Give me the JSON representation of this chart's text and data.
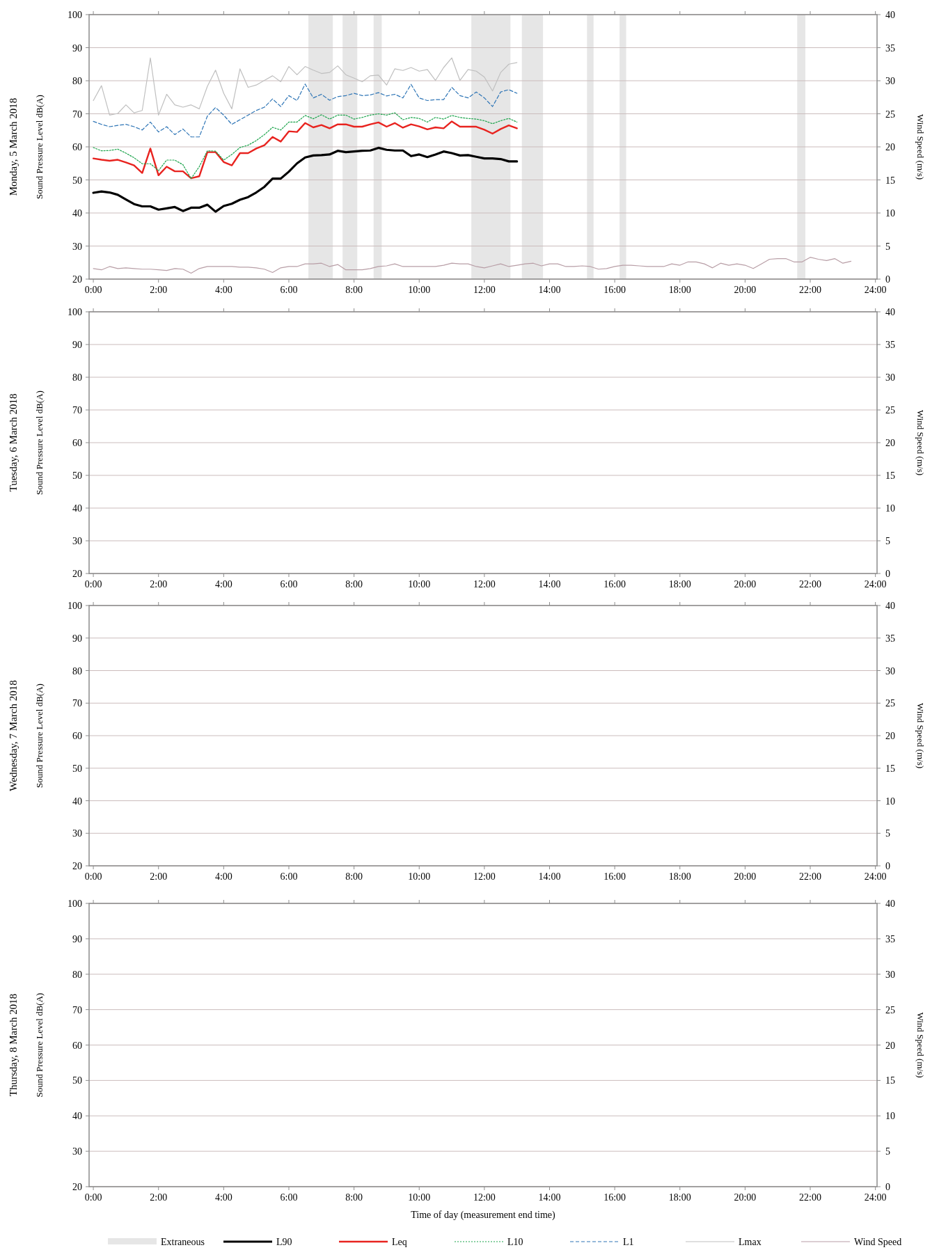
{
  "chart_data": [
    {
      "type": "line",
      "title": "Monday, 5 March 2018",
      "ylabel": "Sound Pressure Level dB(A)",
      "y2label": "Wind Speed (m/s)",
      "xlim": [
        -0.13,
        24.05
      ],
      "xticks": [
        {
          "value": 0,
          "label": "0:00"
        },
        {
          "value": 2,
          "label": "2:00"
        },
        {
          "value": 4,
          "label": "4:00"
        },
        {
          "value": 6,
          "label": "6:00"
        },
        {
          "value": 8,
          "label": "8:00"
        },
        {
          "value": 10,
          "label": "10:00"
        },
        {
          "value": 12,
          "label": "12:00"
        },
        {
          "value": 14,
          "label": "14:00"
        },
        {
          "value": 16,
          "label": "16:00"
        },
        {
          "value": 18,
          "label": "18:00"
        },
        {
          "value": 20,
          "label": "20:00"
        },
        {
          "value": 22,
          "label": "22:00"
        },
        {
          "value": 24,
          "label": "24:00"
        }
      ],
      "ylim": [
        20,
        100
      ],
      "yticks": [
        20,
        30,
        40,
        50,
        60,
        70,
        80,
        90,
        100
      ],
      "y2lim": [
        0,
        40
      ],
      "y2ticks": [
        0,
        5,
        10,
        15,
        20,
        25,
        30,
        35,
        40
      ],
      "grid": "y",
      "legend": "bottom",
      "x": [
        0,
        0.25,
        0.5,
        0.75,
        1,
        1.25,
        1.5,
        1.75,
        2,
        2.25,
        2.5,
        2.75,
        3,
        3.25,
        3.5,
        3.75,
        4,
        4.25,
        4.5,
        4.75,
        5,
        5.25,
        5.5,
        5.75,
        6,
        6.25,
        6.5,
        6.75,
        7,
        7.25,
        7.5,
        7.75,
        8,
        8.25,
        8.5,
        8.75,
        9,
        9.25,
        9.5,
        9.75,
        10,
        10.25,
        10.5,
        10.75,
        11,
        11.25,
        11.5,
        11.75,
        12,
        12.25,
        12.5,
        12.75,
        13
      ],
      "bands": [
        {
          "axis": "x",
          "from": 6.6,
          "to": 7.35,
          "label": "Extraneous",
          "color": "#e6e6e6"
        },
        {
          "axis": "x",
          "from": 7.65,
          "to": 8.1,
          "color": "#e6e6e6"
        },
        {
          "axis": "x",
          "from": 8.6,
          "to": 8.85,
          "color": "#e6e6e6"
        },
        {
          "axis": "x",
          "from": 11.6,
          "to": 12.8,
          "color": "#e6e6e6"
        },
        {
          "axis": "x",
          "from": 13.15,
          "to": 13.8,
          "color": "#e6e6e6"
        },
        {
          "axis": "x",
          "from": 15.15,
          "to": 15.35,
          "color": "#e6e6e6"
        },
        {
          "axis": "x",
          "from": 16.15,
          "to": 16.35,
          "color": "#e6e6e6"
        },
        {
          "axis": "x",
          "from": 21.6,
          "to": 21.85,
          "color": "#e6e6e6"
        }
      ],
      "series": [
        {
          "name": "L90",
          "color": "#000000",
          "line_style": "solid",
          "values": [
            46.1,
            46.5,
            46.2,
            45.5,
            44.1,
            42.7,
            42.0,
            42.0,
            41.0,
            41.4,
            41.8,
            40.6,
            41.6,
            41.6,
            42.5,
            40.4,
            42.1,
            42.8,
            44.0,
            44.8,
            46.2,
            47.9,
            50.4,
            50.4,
            52.5,
            55.0,
            56.8,
            57.4,
            57.5,
            57.7,
            58.8,
            58.4,
            58.6,
            58.8,
            58.9,
            59.7,
            59.1,
            58.9,
            58.9,
            57.2,
            57.7,
            56.9,
            57.7,
            58.6,
            58.1,
            57.4,
            57.5,
            57.0,
            56.5,
            56.5,
            56.3,
            55.6,
            55.6
          ]
        },
        {
          "name": "Leq",
          "color": "#e8231f",
          "line_style": "solid",
          "values": [
            56.5,
            56.1,
            55.8,
            56.1,
            55.3,
            54.4,
            52.1,
            59.5,
            51.4,
            54.0,
            52.6,
            52.6,
            50.5,
            51.1,
            58.4,
            58.4,
            55.4,
            54.4,
            58.1,
            58.1,
            59.5,
            60.5,
            63.0,
            61.6,
            64.7,
            64.5,
            67.2,
            65.9,
            66.6,
            65.6,
            66.8,
            66.8,
            66.1,
            66.1,
            66.8,
            67.4,
            66.1,
            67.2,
            65.8,
            66.8,
            66.2,
            65.3,
            65.9,
            65.6,
            67.7,
            66.1,
            66.1,
            66.1,
            65.2,
            64.0,
            65.4,
            66.5,
            65.6
          ]
        },
        {
          "name": "L10",
          "color": "#1aa34a",
          "line_style": "dotted",
          "values": [
            59.8,
            58.8,
            58.9,
            59.3,
            58.1,
            56.7,
            54.9,
            54.9,
            52.8,
            56.0,
            56.0,
            54.6,
            50.4,
            54.0,
            58.8,
            58.7,
            56.0,
            57.7,
            59.8,
            60.5,
            61.9,
            63.7,
            65.9,
            65.1,
            67.5,
            67.5,
            69.5,
            68.5,
            69.7,
            68.4,
            69.6,
            69.6,
            68.4,
            68.9,
            69.6,
            70.0,
            69.6,
            70.3,
            68.2,
            68.9,
            68.6,
            67.5,
            68.9,
            68.4,
            69.5,
            68.9,
            68.6,
            68.4,
            67.9,
            67.0,
            67.9,
            68.6,
            67.5
          ]
        },
        {
          "name": "L1",
          "color": "#2e75b6",
          "line_style": "dashed",
          "values": [
            67.7,
            66.8,
            66.1,
            66.5,
            66.8,
            66.1,
            65.1,
            67.5,
            64.5,
            66.1,
            63.7,
            65.4,
            63.0,
            63.0,
            69.3,
            71.9,
            69.6,
            66.8,
            68.2,
            69.6,
            71.0,
            72.0,
            74.5,
            72.2,
            75.5,
            74.0,
            79.0,
            74.8,
            75.9,
            74.1,
            75.2,
            75.5,
            76.2,
            75.5,
            75.7,
            76.4,
            75.4,
            75.9,
            74.8,
            78.9,
            74.8,
            74.0,
            74.3,
            74.3,
            78.0,
            75.5,
            74.8,
            76.6,
            74.8,
            72.2,
            76.6,
            77.3,
            76.2
          ]
        },
        {
          "name": "Lmax",
          "color": "#bfbfbf",
          "line_style": "solid",
          "values": [
            74.0,
            78.5,
            69.6,
            70.1,
            72.7,
            70.3,
            71.0,
            86.9,
            69.6,
            75.9,
            72.7,
            72.0,
            72.7,
            71.5,
            78.3,
            83.2,
            76.2,
            71.5,
            83.6,
            78.0,
            78.7,
            80.1,
            81.5,
            79.7,
            84.3,
            81.8,
            84.3,
            83.2,
            82.2,
            82.5,
            84.5,
            81.8,
            80.8,
            79.7,
            81.5,
            81.7,
            78.7,
            83.6,
            83.1,
            84.0,
            82.9,
            83.4,
            80.1,
            84.0,
            86.9,
            80.1,
            83.4,
            82.9,
            81.1,
            76.9,
            82.5,
            85.0,
            85.5
          ]
        },
        {
          "name": "Wind Speed",
          "color": "#b89ea6",
          "line_style": "solid",
          "axis": "y2",
          "x": [
            0,
            0.25,
            0.5,
            0.75,
            1,
            1.25,
            1.5,
            1.75,
            2,
            2.25,
            2.5,
            2.75,
            3,
            3.25,
            3.5,
            3.75,
            4,
            4.25,
            4.5,
            4.75,
            5,
            5.25,
            5.5,
            5.75,
            6,
            6.25,
            6.5,
            6.75,
            7,
            7.25,
            7.5,
            7.75,
            8,
            8.25,
            8.5,
            8.75,
            9,
            9.25,
            9.5,
            9.75,
            10,
            10.25,
            10.5,
            10.75,
            11,
            11.25,
            11.5,
            11.75,
            12,
            12.25,
            12.5,
            12.75,
            13,
            13.25,
            13.5,
            13.75,
            14,
            14.25,
            14.5,
            14.75,
            15,
            15.25,
            15.5,
            15.75,
            16,
            16.25,
            16.5,
            16.75,
            17,
            17.25,
            17.5,
            17.75,
            18,
            18.25,
            18.5,
            18.75,
            19,
            19.25,
            19.5,
            19.75,
            20,
            20.25,
            20.5,
            20.75,
            21,
            21.25,
            21.5,
            21.75,
            22,
            22.25,
            22.5,
            22.75,
            23,
            23.25
          ],
          "values": [
            1.6,
            1.4,
            1.9,
            1.6,
            1.7,
            1.6,
            1.5,
            1.5,
            1.4,
            1.3,
            1.6,
            1.5,
            0.9,
            1.6,
            1.9,
            1.9,
            1.9,
            1.9,
            1.8,
            1.8,
            1.7,
            1.5,
            1.0,
            1.7,
            1.9,
            1.9,
            2.3,
            2.3,
            2.4,
            1.9,
            2.2,
            1.4,
            1.4,
            1.4,
            1.6,
            1.9,
            2.0,
            2.3,
            1.9,
            1.9,
            1.9,
            1.9,
            1.9,
            2.1,
            2.4,
            2.3,
            2.3,
            1.9,
            1.7,
            2.0,
            2.3,
            1.9,
            2.1,
            2.3,
            2.4,
            2.0,
            2.3,
            2.3,
            1.9,
            1.9,
            2.0,
            1.9,
            1.5,
            1.6,
            1.9,
            2.1,
            2.1,
            2.0,
            1.9,
            1.9,
            1.9,
            2.3,
            2.1,
            2.6,
            2.6,
            2.3,
            1.7,
            2.4,
            2.1,
            2.3,
            2.1,
            1.6,
            2.3,
            3.0,
            3.1,
            3.1,
            2.6,
            2.6,
            3.3,
            3.0,
            2.8,
            3.1,
            2.4,
            2.7
          ]
        }
      ]
    },
    {
      "type": "line",
      "title": "Tuesday, 6 March 2018",
      "ylabel": "Sound Pressure Level dB(A)",
      "y2label": "Wind Speed (m/s)",
      "xlim": [
        -0.13,
        24.05
      ],
      "xticks": [
        {
          "value": 0,
          "label": "0:00"
        },
        {
          "value": 2,
          "label": "2:00"
        },
        {
          "value": 4,
          "label": "4:00"
        },
        {
          "value": 6,
          "label": "6:00"
        },
        {
          "value": 8,
          "label": "8:00"
        },
        {
          "value": 10,
          "label": "10:00"
        },
        {
          "value": 12,
          "label": "12:00"
        },
        {
          "value": 14,
          "label": "14:00"
        },
        {
          "value": 16,
          "label": "16:00"
        },
        {
          "value": 18,
          "label": "18:00"
        },
        {
          "value": 20,
          "label": "20:00"
        },
        {
          "value": 22,
          "label": "22:00"
        },
        {
          "value": 24,
          "label": "24:00"
        }
      ],
      "ylim": [
        20,
        100
      ],
      "yticks": [
        20,
        30,
        40,
        50,
        60,
        70,
        80,
        90,
        100
      ],
      "y2lim": [
        0,
        40
      ],
      "y2ticks": [
        0,
        5,
        10,
        15,
        20,
        25,
        30,
        35,
        40
      ],
      "grid": "y"
    },
    {
      "type": "line",
      "title": "Wednesday, 7 March 2018",
      "ylabel": "Sound Pressure Level dB(A)",
      "y2label": "Wind Speed (m/s)",
      "xlim": [
        -0.13,
        24.05
      ],
      "xticks": [
        {
          "value": 0,
          "label": "0:00"
        },
        {
          "value": 2,
          "label": "2:00"
        },
        {
          "value": 4,
          "label": "4:00"
        },
        {
          "value": 6,
          "label": "6:00"
        },
        {
          "value": 8,
          "label": "8:00"
        },
        {
          "value": 10,
          "label": "10:00"
        },
        {
          "value": 12,
          "label": "12:00"
        },
        {
          "value": 14,
          "label": "14:00"
        },
        {
          "value": 16,
          "label": "16:00"
        },
        {
          "value": 18,
          "label": "18:00"
        },
        {
          "value": 20,
          "label": "20:00"
        },
        {
          "value": 22,
          "label": "22:00"
        },
        {
          "value": 24,
          "label": "24:00"
        }
      ],
      "ylim": [
        20,
        100
      ],
      "yticks": [
        20,
        30,
        40,
        50,
        60,
        70,
        80,
        90,
        100
      ],
      "y2lim": [
        0,
        40
      ],
      "y2ticks": [
        0,
        5,
        10,
        15,
        20,
        25,
        30,
        35,
        40
      ],
      "grid": "y"
    },
    {
      "type": "line",
      "title": "Thursday, 8 March 2018",
      "xlabel": "Time of day (measurement end time)",
      "ylabel": "Sound Pressure Level dB(A)",
      "y2label": "Wind Speed (m/s)",
      "xlim": [
        -0.13,
        24.05
      ],
      "xticks": [
        {
          "value": 0,
          "label": "0:00"
        },
        {
          "value": 2,
          "label": "2:00"
        },
        {
          "value": 4,
          "label": "4:00"
        },
        {
          "value": 6,
          "label": "6:00"
        },
        {
          "value": 8,
          "label": "8:00"
        },
        {
          "value": 10,
          "label": "10:00"
        },
        {
          "value": 12,
          "label": "12:00"
        },
        {
          "value": 14,
          "label": "14:00"
        },
        {
          "value": 16,
          "label": "16:00"
        },
        {
          "value": 18,
          "label": "18:00"
        },
        {
          "value": 20,
          "label": "20:00"
        },
        {
          "value": 22,
          "label": "22:00"
        },
        {
          "value": 24,
          "label": "24:00"
        }
      ],
      "ylim": [
        20,
        100
      ],
      "yticks": [
        20,
        30,
        40,
        50,
        60,
        70,
        80,
        90,
        100
      ],
      "y2lim": [
        0,
        40
      ],
      "y2ticks": [
        0,
        5,
        10,
        15,
        20,
        25,
        30,
        35,
        40
      ],
      "grid": "y"
    }
  ]
}
